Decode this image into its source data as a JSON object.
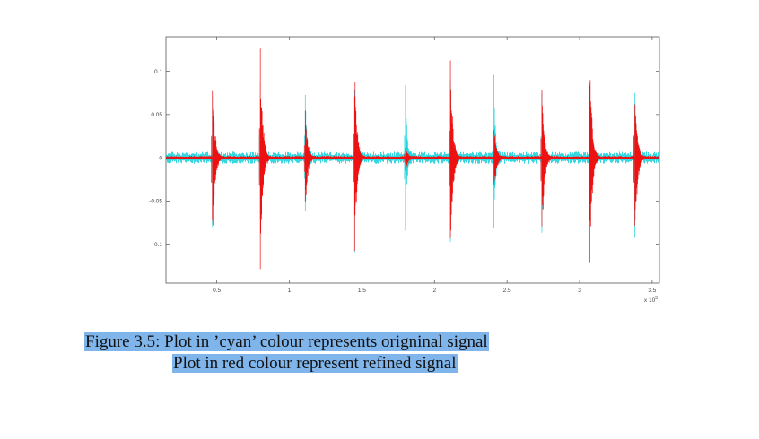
{
  "caption": {
    "line1": "Figure 3.5: Plot in ’cyan’ colour represents origninal signal",
    "line2": "Plot in red colour represent refined signal"
  },
  "chart_data": {
    "type": "line",
    "title": "",
    "xlabel": "",
    "ylabel": "",
    "x_exponent_label": "x 10",
    "x_exponent": "5",
    "xlim": [
      0.15,
      3.55
    ],
    "ylim": [
      -0.145,
      0.14
    ],
    "x_ticks": [
      "0.5",
      "1",
      "1.5",
      "2",
      "2.5",
      "3",
      "3.5"
    ],
    "x_tick_values": [
      0.5,
      1,
      1.5,
      2,
      2.5,
      3,
      3.5
    ],
    "y_ticks": [
      "0.1",
      "0.05",
      "0",
      "-0.05",
      "-0.1"
    ],
    "y_tick_values": [
      0.1,
      0.05,
      0,
      -0.05,
      -0.1
    ],
    "grid": false,
    "legend": "none",
    "series": [
      {
        "color": "#22d3dc",
        "noise_amplitude": 0.007,
        "spikes": [
          {
            "x": 0.47,
            "max": 0.102,
            "min": -0.115
          },
          {
            "x": 0.8,
            "max": 0.105,
            "min": -0.105
          },
          {
            "x": 1.11,
            "max": 0.102,
            "min": -0.097
          },
          {
            "x": 1.45,
            "max": 0.11,
            "min": -0.11
          },
          {
            "x": 1.8,
            "max": 0.102,
            "min": -0.1
          },
          {
            "x": 2.11,
            "max": 0.122,
            "min": -0.132
          },
          {
            "x": 2.41,
            "max": 0.102,
            "min": -0.1
          },
          {
            "x": 2.74,
            "max": 0.098,
            "min": -0.098
          },
          {
            "x": 3.07,
            "max": 0.1,
            "min": -0.1
          },
          {
            "x": 3.38,
            "max": 0.104,
            "min": -0.102
          }
        ]
      },
      {
        "color": "#ee1111",
        "noise_amplitude": 0.002,
        "spikes": [
          {
            "x": 0.47,
            "max": 0.099,
            "min": -0.115
          },
          {
            "x": 0.8,
            "max": 0.135,
            "min": -0.13
          },
          {
            "x": 1.11,
            "max": 0.058,
            "min": -0.065
          },
          {
            "x": 1.45,
            "max": 0.108,
            "min": -0.112
          },
          {
            "x": 1.8,
            "max": 0.018,
            "min": -0.022
          },
          {
            "x": 2.11,
            "max": 0.125,
            "min": -0.13
          },
          {
            "x": 2.41,
            "max": 0.046,
            "min": -0.05
          },
          {
            "x": 2.74,
            "max": 0.088,
            "min": -0.108
          },
          {
            "x": 3.07,
            "max": 0.124,
            "min": -0.132
          },
          {
            "x": 3.38,
            "max": 0.098,
            "min": -0.115
          }
        ]
      }
    ]
  }
}
